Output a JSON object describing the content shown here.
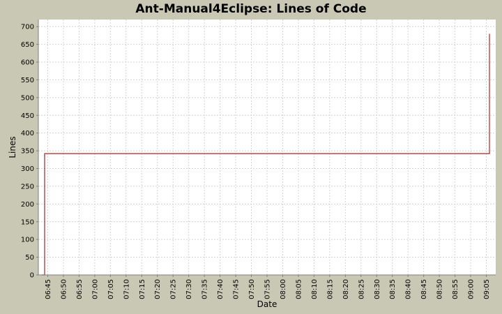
{
  "chart_data": {
    "type": "line",
    "title": "Ant-Manual4Eclipse: Lines of Code",
    "xlabel": "Date",
    "ylabel": "Lines",
    "ylim": [
      0,
      720
    ],
    "yticks": [
      0,
      50,
      100,
      150,
      200,
      250,
      300,
      350,
      400,
      450,
      500,
      550,
      600,
      650,
      700
    ],
    "xticks": [
      "06:45",
      "06:50",
      "06:55",
      "07:00",
      "07:05",
      "07:10",
      "07:15",
      "07:20",
      "07:25",
      "07:30",
      "07:35",
      "07:40",
      "07:45",
      "07:50",
      "07:55",
      "08:00",
      "08:05",
      "08:10",
      "08:15",
      "08:20",
      "08:25",
      "08:30",
      "08:35",
      "08:40",
      "08:45",
      "08:50",
      "08:55",
      "09:00",
      "09:05"
    ],
    "xlim": [
      "06:42",
      "09:08"
    ],
    "step": true,
    "grid": true,
    "series": [
      {
        "color": "#b22222",
        "x": [
          "06:43",
          "06:44",
          "09:05",
          "09:06"
        ],
        "values": [
          0,
          342,
          342,
          680
        ]
      }
    ]
  }
}
